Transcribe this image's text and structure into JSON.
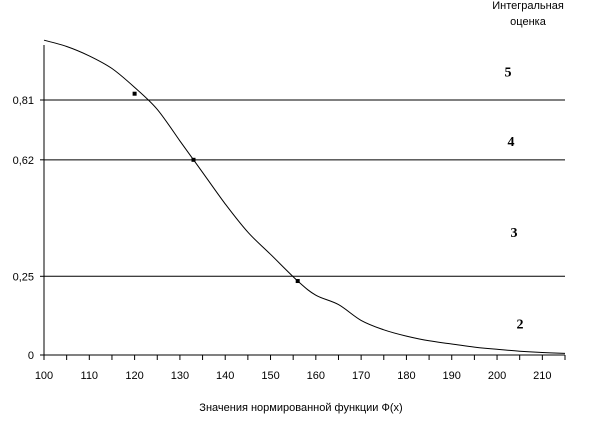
{
  "chart_data": {
    "type": "line",
    "title": "",
    "xlabel": "Значения нормированной функции Ф(x)",
    "ylabel": "",
    "xlim": [
      100,
      215
    ],
    "ylim": [
      0,
      1
    ],
    "grid": false,
    "x_ticks": [
      "100",
      "110",
      "120",
      "130",
      "140",
      "150",
      "160",
      "170",
      "180",
      "190",
      "200",
      "210"
    ],
    "y_ticks": [
      {
        "value": 0,
        "label": "0"
      },
      {
        "value": 0.25,
        "label": "0,25"
      },
      {
        "value": 0.62,
        "label": "0,62"
      },
      {
        "value": 0.81,
        "label": "0,81"
      }
    ],
    "thresholds": [
      0.25,
      0.62,
      0.81
    ],
    "legend_title_line1": "Интегральная",
    "legend_title_line2": "оценка",
    "grades": [
      {
        "label": "5",
        "y": 0.9
      },
      {
        "label": "4",
        "y": 0.68
      },
      {
        "label": "3",
        "y": 0.39
      },
      {
        "label": "2",
        "y": 0.1
      }
    ],
    "series": [
      {
        "x": [
          100,
          105,
          110,
          115,
          120,
          125,
          130,
          133,
          135,
          140,
          145,
          150,
          156,
          160,
          165,
          170,
          175,
          180,
          185,
          190,
          195,
          200,
          205,
          210,
          215
        ],
        "y": [
          1.0,
          0.98,
          0.95,
          0.91,
          0.85,
          0.78,
          0.68,
          0.62,
          0.58,
          0.48,
          0.39,
          0.32,
          0.235,
          0.19,
          0.16,
          0.11,
          0.08,
          0.06,
          0.045,
          0.035,
          0.025,
          0.018,
          0.012,
          0.008,
          0.005
        ]
      }
    ],
    "markers": [
      {
        "x": 120,
        "y": 0.83
      },
      {
        "x": 133,
        "y": 0.62
      },
      {
        "x": 156,
        "y": 0.235
      }
    ]
  }
}
